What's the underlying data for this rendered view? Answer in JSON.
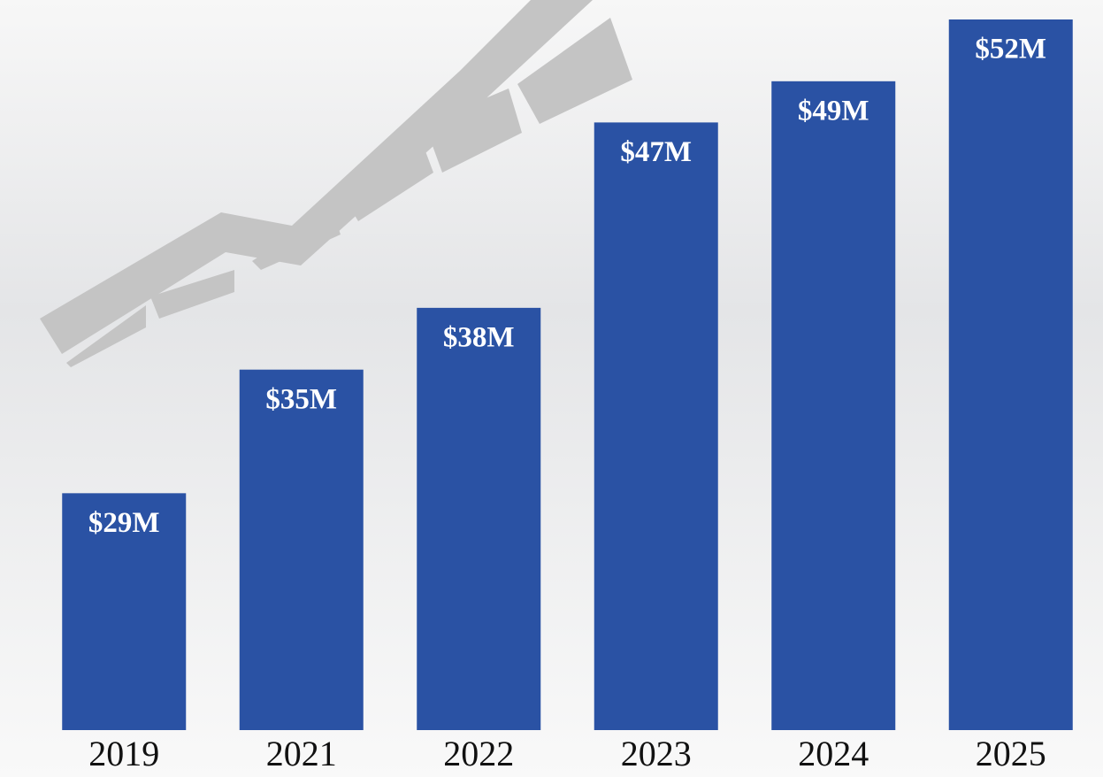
{
  "chart_data": {
    "type": "bar",
    "categories": [
      "2019",
      "2021",
      "2022",
      "2023",
      "2024",
      "2025"
    ],
    "values": [
      29,
      35,
      38,
      47,
      49,
      52
    ],
    "value_labels": [
      "$29M",
      "$35M",
      "$38M",
      "$47M",
      "$49M",
      "$52M"
    ],
    "color": "#2a52a4"
  }
}
